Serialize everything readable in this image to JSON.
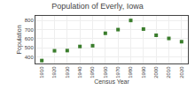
{
  "chart_data": {
    "type": "scatter",
    "title": "Population of Everly, Iowa",
    "xlabel": "Census Year",
    "ylabel": "Population",
    "x": [
      1910,
      1920,
      1930,
      1940,
      1950,
      1960,
      1970,
      1980,
      1990,
      2000,
      2010,
      2020
    ],
    "values": [
      362,
      469,
      471,
      516,
      524,
      660,
      700,
      800,
      706,
      638,
      604,
      568
    ],
    "color": "#3a7d2c",
    "marker": "square",
    "xlim": [
      1905,
      2025
    ],
    "xticks": [
      1910,
      1920,
      1930,
      1940,
      1950,
      1960,
      1970,
      1980,
      1990,
      2000,
      2010,
      2020
    ],
    "ylim": [
      330,
      850
    ],
    "yticks": [
      400,
      500,
      600,
      700,
      800
    ],
    "grid": true
  }
}
